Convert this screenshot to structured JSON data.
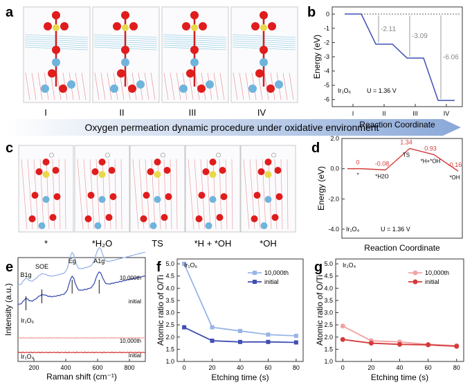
{
  "panel_letters": [
    "a",
    "b",
    "c",
    "d",
    "e",
    "f",
    "g"
  ],
  "panel_a": {
    "roman": [
      "I",
      "II",
      "III",
      "IV"
    ]
  },
  "arrow_banner": "Oxygen permeation dynamic procedure under oxidative environment",
  "panel_c": {
    "labels": [
      "*",
      "*H₂O",
      "TS",
      "*H + *OH",
      "*OH"
    ]
  },
  "colors": {
    "blue_dark": "#3f4fb3",
    "blue_light": "#98b4e6",
    "red_dark": "#d43a3a",
    "red_light": "#f2a3a3",
    "arrow": "#8aa8d8",
    "grey": "#999999"
  },
  "chart_data": [
    {
      "id": "b",
      "type": "line",
      "title": "",
      "xlabel": "Reaction Coordinate",
      "ylabel": "Energy (eV)",
      "categories": [
        "I",
        "II",
        "III",
        "IV"
      ],
      "values": [
        0,
        -2.11,
        -3.09,
        -6.06
      ],
      "ylim": [
        -6.5,
        0.5
      ],
      "yticks": [
        "0",
        "-1",
        "-2",
        "-3",
        "-4",
        "-5",
        "-6"
      ],
      "annotations": [
        "-2.11",
        "-3.09",
        "-6.06"
      ],
      "inset": {
        "label": "Ir₁O₆",
        "potential": "U = 1.36 V"
      }
    },
    {
      "id": "d",
      "type": "line",
      "xlabel": "Reaction Coordinate",
      "ylabel": "Energy (eV)",
      "states": [
        "*",
        "*H2O",
        "TS",
        "*H+*OH",
        "*OH"
      ],
      "values": [
        0,
        -0.08,
        1.34,
        0.93,
        -0.16
      ],
      "value_labels": [
        "0",
        "-0.08",
        "1.34",
        "0.93",
        "-0.16"
      ],
      "ylim": [
        -4.6,
        2.0
      ],
      "yticks": [
        "2.0",
        "0.0",
        "-2.0",
        "-4.0"
      ],
      "inset": {
        "label": "Ir₁O₄",
        "potential": "U = 1.36 V"
      }
    },
    {
      "id": "e",
      "type": "line",
      "xlabel": "Raman shift (cm⁻¹)",
      "ylabel": "Intensity (a.u.)",
      "xlim": [
        100,
        900
      ],
      "xticks": [
        "200",
        "400",
        "600",
        "800"
      ],
      "peaks": [
        "B1g",
        "SOE",
        "Eg",
        "A1g"
      ],
      "series": [
        {
          "name": "10,000th",
          "group": "Ir₁O₆",
          "color": "#98b4e6"
        },
        {
          "name": "initial",
          "group": "Ir₁O₆",
          "color": "#3f4fb3"
        },
        {
          "name": "10,000th",
          "group": "Ir₁O₄",
          "color": "#f2a3a3"
        },
        {
          "name": "initial",
          "group": "Ir₁O₄",
          "color": "#d43a3a"
        }
      ],
      "group_labels": [
        "Ir₁O₆",
        "Ir₁O₄"
      ]
    },
    {
      "id": "f",
      "type": "line",
      "xlabel": "Etching time (s)",
      "ylabel": "Atomic ratio of O/Ti",
      "x": [
        0,
        20,
        40,
        60,
        80
      ],
      "xlim": [
        -5,
        85
      ],
      "ylim": [
        1.0,
        5.2
      ],
      "yticks": [
        "1.0",
        "1.5",
        "2.0",
        "2.5",
        "3.0",
        "3.5",
        "4.0",
        "4.5",
        "5.0"
      ],
      "inset": "Ir₁O₆",
      "series": [
        {
          "name": "10,000th",
          "values": [
            5.0,
            2.4,
            2.25,
            2.1,
            2.05
          ]
        },
        {
          "name": "initial",
          "values": [
            2.4,
            1.85,
            1.8,
            1.8,
            1.78
          ]
        }
      ]
    },
    {
      "id": "g",
      "type": "line",
      "xlabel": "Etching time (s)",
      "ylabel": "Atomic ratio of O/Ti",
      "x": [
        0,
        20,
        40,
        60,
        80
      ],
      "xlim": [
        -5,
        85
      ],
      "ylim": [
        1.0,
        5.2
      ],
      "yticks": [
        "1.0",
        "1.5",
        "2.0",
        "2.5",
        "3.0",
        "3.5",
        "4.0",
        "4.5",
        "5.0"
      ],
      "inset": "Ir₁O₄",
      "series": [
        {
          "name": "10,000th",
          "values": [
            2.45,
            1.85,
            1.8,
            1.7,
            1.65
          ]
        },
        {
          "name": "initial",
          "values": [
            1.9,
            1.75,
            1.7,
            1.68,
            1.62
          ]
        }
      ]
    }
  ]
}
